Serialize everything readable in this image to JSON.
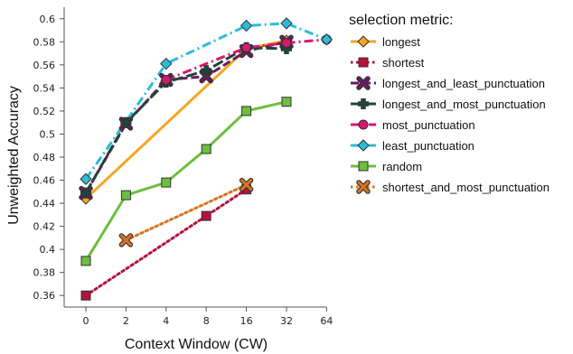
{
  "chart_data": {
    "type": "line",
    "xlabel": "Context Window (CW)",
    "ylabel": "Unweighted Accuracy",
    "x_categories": [
      "0",
      "2",
      "4",
      "8",
      "16",
      "32",
      "64"
    ],
    "y_ticks": [
      "0.36",
      "0.38",
      "0.4",
      "0.42",
      "0.44",
      "0.46",
      "0.48",
      "0.5",
      "0.52",
      "0.54",
      "0.56",
      "0.58",
      "0.6"
    ],
    "ylim": [
      0.35,
      0.61
    ],
    "grid": false,
    "legend_title": "selection metric:",
    "legend_position": "right",
    "series": [
      {
        "name": "longest",
        "color": "#f5a623",
        "dash": "solid",
        "marker": "diamond",
        "x": [
          "0",
          "16",
          "32"
        ],
        "y": [
          0.444,
          0.574,
          0.581
        ]
      },
      {
        "name": "shortest",
        "color": "#b5123e",
        "dash": "dotted",
        "marker": "square",
        "x": [
          "0",
          "8",
          "16"
        ],
        "y": [
          0.36,
          0.429,
          0.452
        ]
      },
      {
        "name": "longest_and_least_punctuation",
        "color": "#6a1b5f",
        "dash": "dashed",
        "marker": "x",
        "x": [
          "0",
          "2",
          "4",
          "8",
          "16",
          "32"
        ],
        "y": [
          0.449,
          0.509,
          0.547,
          0.55,
          0.572,
          0.58
        ]
      },
      {
        "name": "longest_and_most_punctuation",
        "color": "#1f4637",
        "dash": "longdash",
        "marker": "plus",
        "x": [
          "0",
          "2",
          "4",
          "8",
          "16",
          "32"
        ],
        "y": [
          0.449,
          0.51,
          0.545,
          0.555,
          0.575,
          0.574
        ]
      },
      {
        "name": "most_punctuation",
        "color": "#d6186f",
        "dash": "dashdot",
        "marker": "circle",
        "x": [
          "4",
          "16",
          "32",
          "64"
        ],
        "y": [
          0.547,
          0.575,
          0.579,
          0.582
        ]
      },
      {
        "name": "least_punctuation",
        "color": "#2bbcd9",
        "dash": "dashdot",
        "marker": "diamond",
        "x": [
          "0",
          "4",
          "16",
          "32",
          "64"
        ],
        "y": [
          0.461,
          0.561,
          0.594,
          0.596,
          0.582
        ]
      },
      {
        "name": "random",
        "color": "#6cbf3f",
        "dash": "solid",
        "marker": "square",
        "x": [
          "0",
          "2",
          "4",
          "8",
          "16",
          "32"
        ],
        "y": [
          0.39,
          0.447,
          0.458,
          0.487,
          0.52,
          0.528
        ]
      },
      {
        "name": "shortest_and_most_punctuation",
        "color": "#d9731f",
        "dash": "dotted",
        "marker": "x",
        "x": [
          "2",
          "16"
        ],
        "y": [
          0.408,
          0.456
        ]
      }
    ]
  }
}
